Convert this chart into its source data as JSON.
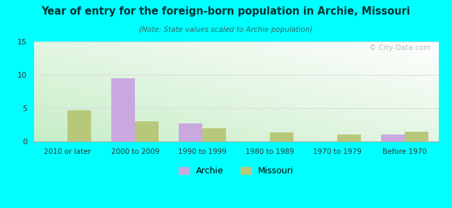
{
  "title": "Year of entry for the foreign-born population in Archie, Missouri",
  "subtitle": "(Note: State values scaled to Archie population)",
  "categories": [
    "2010 or later",
    "2000 to 2009",
    "1990 to 1999",
    "1980 to 1989",
    "1970 to 1979",
    "Before 1970"
  ],
  "archie_values": [
    0,
    9.5,
    2.7,
    0,
    0,
    1.0
  ],
  "missouri_values": [
    4.7,
    3.0,
    2.0,
    1.4,
    1.0,
    1.5
  ],
  "archie_color": "#c9a8e0",
  "missouri_color": "#b8c87a",
  "background_color": "#00FFFF",
  "ylim": [
    0,
    15
  ],
  "yticks": [
    0,
    5,
    10,
    15
  ],
  "bar_width": 0.35,
  "legend_labels": [
    "Archie",
    "Missouri"
  ],
  "watermark": "© City-Data.com",
  "grid_color": "#dddddd",
  "title_color": "#003333",
  "subtitle_color": "#336666"
}
